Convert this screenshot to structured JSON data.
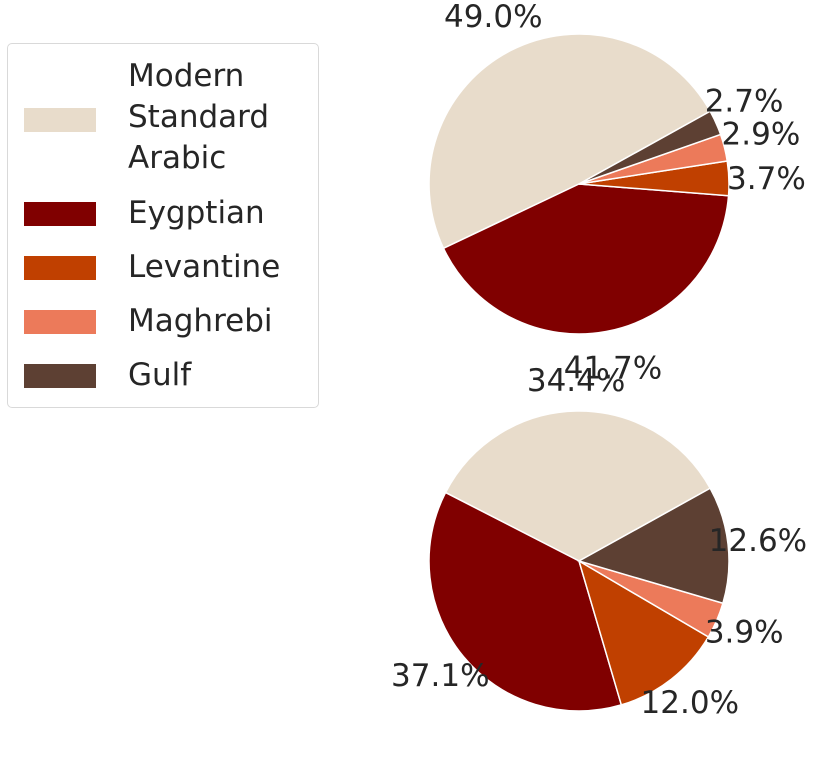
{
  "chart_data": [
    {
      "type": "pie",
      "categories": [
        "Modern Standard Arabic",
        "Eygptian",
        "Levantine",
        "Maghrebi",
        "Gulf"
      ],
      "values": [
        49.0,
        41.7,
        3.7,
        2.9,
        2.7
      ],
      "labels": [
        "49.0%",
        "41.7%",
        "3.7%",
        "2.9%",
        "2.7%"
      ]
    },
    {
      "type": "pie",
      "categories": [
        "Modern Standard Arabic",
        "Eygptian",
        "Levantine",
        "Maghrebi",
        "Gulf"
      ],
      "values": [
        34.4,
        37.1,
        12.0,
        3.9,
        12.6
      ],
      "labels": [
        "34.4%",
        "37.1%",
        "12.0%",
        "3.9%",
        "12.6%"
      ]
    }
  ],
  "legend": {
    "placement": "left",
    "items": [
      {
        "label": "Modern\nStandard\nArabic",
        "color": "#e8dccb"
      },
      {
        "label": "Eygptian",
        "color": "#800000"
      },
      {
        "label": "Levantine",
        "color": "#c04000"
      },
      {
        "label": "Maghrebi",
        "color": "#ec7a5a"
      },
      {
        "label": "Gulf",
        "color": "#5d4033"
      }
    ]
  }
}
